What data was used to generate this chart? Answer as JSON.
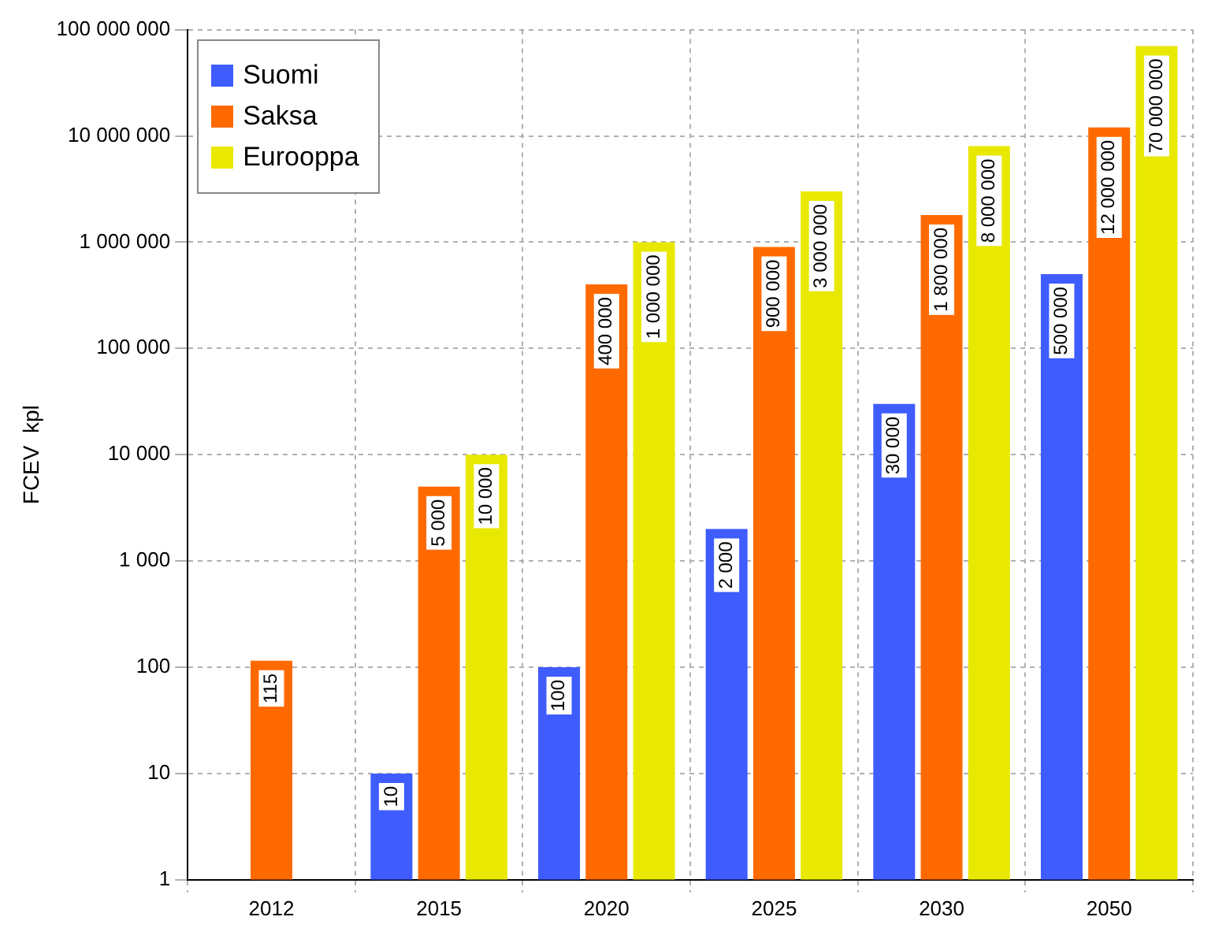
{
  "chart_data": {
    "type": "bar",
    "ylabel": "FCEV  kpl",
    "categories": [
      "2012",
      "2015",
      "2020",
      "2025",
      "2030",
      "2050"
    ],
    "series": [
      {
        "name": "Suomi",
        "color": "#3f5cff",
        "values": [
          null,
          10,
          100,
          2000,
          30000,
          500000
        ],
        "value_labels": [
          null,
          "10",
          "100",
          "2 000",
          "30 000",
          "500 000"
        ]
      },
      {
        "name": "Saksa",
        "color": "#ff6a00",
        "values": [
          115,
          5000,
          400000,
          900000,
          1800000,
          12000000
        ],
        "value_labels": [
          "115",
          "5 000",
          "400 000",
          "900 000",
          "1 800 000",
          "12 000 000"
        ]
      },
      {
        "name": "Eurooppa",
        "color": "#e8e800",
        "values": [
          null,
          10000,
          1000000,
          3000000,
          8000000,
          70000000
        ],
        "value_labels": [
          null,
          "10 000",
          "1 000 000",
          "3 000 000",
          "8 000 000",
          "70 000 000"
        ]
      }
    ],
    "log": "y",
    "ylim": [
      1,
      100000000
    ],
    "yticks": [
      {
        "value": 1,
        "label": "1"
      },
      {
        "value": 10,
        "label": "10"
      },
      {
        "value": 100,
        "label": "100"
      },
      {
        "value": 1000,
        "label": "1 000"
      },
      {
        "value": 10000,
        "label": "10 000"
      },
      {
        "value": 100000,
        "label": "100 000"
      },
      {
        "value": 1000000,
        "label": "1 000 000"
      },
      {
        "value": 10000000,
        "label": "10 000 000"
      },
      {
        "value": 100000000,
        "label": "100 000 000"
      }
    ],
    "grid": true,
    "legend": "top left"
  }
}
